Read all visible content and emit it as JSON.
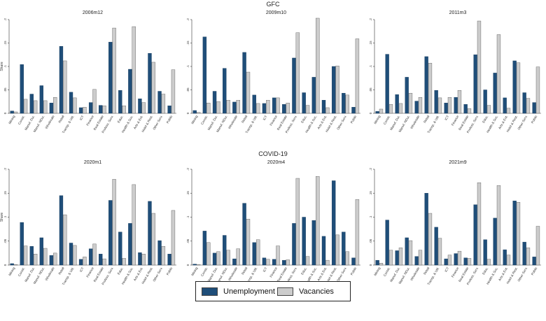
{
  "colors": {
    "unemployment": "#1f4e79",
    "vacancies": "#cccccc",
    "axis": "#333333"
  },
  "groups": [
    {
      "title": "GFC"
    },
    {
      "title": "COVID-19"
    }
  ],
  "legend": {
    "unemployment": "Unemployment",
    "vacancies": "Vacancies"
  },
  "chart_data": [
    {
      "type": "bar",
      "group": "GFC",
      "title": "2006m12",
      "ylabel": "Share",
      "ylim": [
        0,
        0.2
      ],
      "yticks": [
        "0",
        ".05",
        ".1",
        ".15",
        ".2"
      ],
      "categories": [
        "Mining",
        "Constr.",
        "Manuf. Dur.",
        "Manuf. NDur.",
        "Wholesale",
        "Retail",
        "Transp. & Util.",
        "ICT",
        "Finance",
        "Real Estate",
        "Profess. Serv.",
        "Educ.",
        "Health & Soc.",
        "Arts & Ent.",
        "Hotel & Rest.",
        "Other Serv.",
        "Public"
      ],
      "series": [
        {
          "name": "Unemployment",
          "values": [
            0.005,
            0.104,
            0.041,
            0.059,
            0.022,
            0.143,
            0.045,
            0.012,
            0.023,
            0.017,
            0.152,
            0.049,
            0.094,
            0.031,
            0.128,
            0.047,
            0.016
          ]
        },
        {
          "name": "Vacancies",
          "values": [
            0.003,
            0.03,
            0.027,
            0.027,
            0.034,
            0.112,
            0.033,
            0.013,
            0.051,
            0.016,
            0.182,
            0.016,
            0.185,
            0.023,
            0.109,
            0.041,
            0.093
          ]
        }
      ]
    },
    {
      "type": "bar",
      "group": "GFC",
      "title": "2009m10",
      "ylabel": "",
      "ylim": [
        0,
        0.2
      ],
      "yticks": [
        "0",
        ".05",
        ".1",
        ".15",
        ".2"
      ],
      "categories": [
        "Mining",
        "Constr.",
        "Manuf. Dur.",
        "Manuf. NDur.",
        "Wholesale",
        "Retail",
        "Transp. & Util.",
        "ICT",
        "Finance",
        "Real Estate",
        "Profess. Serv.",
        "Educ.",
        "Health & Soc.",
        "Arts & Ent.",
        "Hotel & Rest.",
        "Other Serv.",
        "Public"
      ],
      "series": [
        {
          "name": "Unemployment",
          "values": [
            0.006,
            0.163,
            0.047,
            0.096,
            0.024,
            0.13,
            0.039,
            0.021,
            0.033,
            0.019,
            0.118,
            0.044,
            0.077,
            0.028,
            0.1,
            0.043,
            0.013
          ]
        },
        {
          "name": "Vacancies",
          "values": [
            0.002,
            0.022,
            0.025,
            0.028,
            0.028,
            0.088,
            0.021,
            0.028,
            0.033,
            0.022,
            0.172,
            0.017,
            0.203,
            0.012,
            0.101,
            0.039,
            0.159
          ]
        }
      ]
    },
    {
      "type": "bar",
      "group": "GFC",
      "title": "2011m3",
      "ylabel": "",
      "ylim": [
        0,
        0.2
      ],
      "yticks": [
        "0",
        ".05",
        ".1",
        ".15",
        ".2"
      ],
      "categories": [
        "Mining",
        "Constr.",
        "Manuf. Dur.",
        "Manuf. NDur.",
        "Wholesale",
        "Retail",
        "Transp. & Util.",
        "ICT",
        "Finance",
        "Real Estate",
        "Profess. Serv.",
        "Educ.",
        "Health & Soc.",
        "Arts & Ent.",
        "Hotel & Rest.",
        "Other Serv.",
        "Public"
      ],
      "series": [
        {
          "name": "Unemployment",
          "values": [
            0.004,
            0.126,
            0.04,
            0.077,
            0.026,
            0.121,
            0.049,
            0.022,
            0.034,
            0.019,
            0.125,
            0.05,
            0.086,
            0.033,
            0.112,
            0.044,
            0.023
          ]
        },
        {
          "name": "Vacancies",
          "values": [
            0.009,
            0.019,
            0.021,
            0.043,
            0.034,
            0.107,
            0.033,
            0.034,
            0.049,
            0.01,
            0.197,
            0.017,
            0.168,
            0.011,
            0.108,
            0.032,
            0.099
          ]
        }
      ]
    },
    {
      "type": "bar",
      "group": "COVID-19",
      "title": "2020m1",
      "ylabel": "Share",
      "ylim": [
        0,
        0.2
      ],
      "yticks": [
        "0",
        ".05",
        ".1",
        ".15",
        ".2"
      ],
      "categories": [
        "Mining",
        "Constr.",
        "Manuf. Dur.",
        "Manuf. NDur.",
        "Wholesale",
        "Retail",
        "Transp. & Util.",
        "ICT",
        "Finance",
        "Real Estate",
        "Profess. Serv.",
        "Educ.",
        "Health & Soc.",
        "Arts & Ent.",
        "Hotel & Rest.",
        "Other Serv.",
        "Public"
      ],
      "series": [
        {
          "name": "Unemployment",
          "values": [
            0.003,
            0.089,
            0.039,
            0.057,
            0.02,
            0.145,
            0.046,
            0.012,
            0.034,
            0.023,
            0.135,
            0.069,
            0.087,
            0.026,
            0.133,
            0.051,
            0.023
          ]
        },
        {
          "name": "Vacancies",
          "values": [
            0.001,
            0.04,
            0.023,
            0.035,
            0.025,
            0.105,
            0.041,
            0.017,
            0.044,
            0.013,
            0.179,
            0.014,
            0.168,
            0.023,
            0.108,
            0.039,
            0.114
          ]
        }
      ]
    },
    {
      "type": "bar",
      "group": "COVID-19",
      "title": "2020m4",
      "ylabel": "",
      "ylim": [
        0,
        0.2
      ],
      "yticks": [
        "0",
        ".05",
        ".1",
        ".15",
        ".2"
      ],
      "categories": [
        "Mining",
        "Constr.",
        "Manuf. Dur.",
        "Manuf. NDur.",
        "Wholesale",
        "Retail",
        "Transp. & Util.",
        "ICT",
        "Finance",
        "Real Estate",
        "Profess. Serv.",
        "Educ.",
        "Health & Soc.",
        "Arts & Ent.",
        "Hotel & Rest.",
        "Other Serv.",
        "Public"
      ],
      "series": [
        {
          "name": "Unemployment",
          "values": [
            0.002,
            0.071,
            0.025,
            0.062,
            0.013,
            0.129,
            0.047,
            0.015,
            0.012,
            0.01,
            0.087,
            0.1,
            0.093,
            0.06,
            0.176,
            0.069,
            0.015
          ]
        },
        {
          "name": "Vacancies",
          "values": [
            0.001,
            0.047,
            0.028,
            0.031,
            0.034,
            0.096,
            0.053,
            0.012,
            0.04,
            0.011,
            0.181,
            0.018,
            0.185,
            0.01,
            0.063,
            0.028,
            0.137
          ]
        }
      ]
    },
    {
      "type": "bar",
      "group": "COVID-19",
      "title": "2021m9",
      "ylabel": "",
      "ylim": [
        0,
        0.2
      ],
      "yticks": [
        "0",
        ".05",
        ".1",
        ".15",
        ".2"
      ],
      "categories": [
        "Mining",
        "Constr.",
        "Manuf. Dur.",
        "Manuf. NDur.",
        "Wholesale",
        "Retail",
        "Transp. & Util.",
        "ICT",
        "Finance",
        "Real Estate",
        "Profess. Serv.",
        "Educ.",
        "Health & Soc.",
        "Arts & Ent.",
        "Hotel & Rest.",
        "Other Serv.",
        "Public"
      ],
      "series": [
        {
          "name": "Unemployment",
          "values": [
            0.01,
            0.094,
            0.03,
            0.057,
            0.018,
            0.15,
            0.079,
            0.013,
            0.024,
            0.015,
            0.126,
            0.053,
            0.098,
            0.032,
            0.134,
            0.048,
            0.017
          ]
        },
        {
          "name": "Vacancies",
          "values": [
            0.004,
            0.031,
            0.036,
            0.051,
            0.031,
            0.108,
            0.056,
            0.021,
            0.029,
            0.014,
            0.172,
            0.012,
            0.166,
            0.021,
            0.131,
            0.036,
            0.081
          ]
        }
      ]
    }
  ]
}
